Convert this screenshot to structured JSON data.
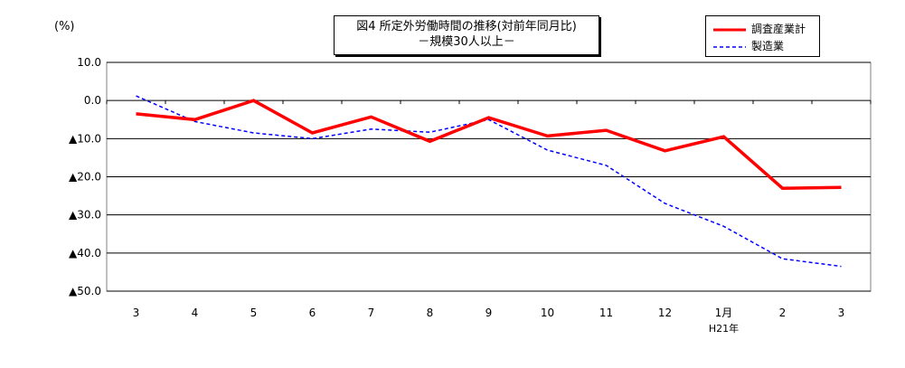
{
  "chart_data": {
    "type": "line",
    "title": "図4 所定外労働時間の推移(対前年同月比)",
    "subtitle": "－規模30人以上－",
    "ylabel": "(%)",
    "categories": [
      "3",
      "4",
      "5",
      "6",
      "7",
      "8",
      "9",
      "10",
      "11",
      "12",
      "1月",
      "2",
      "3"
    ],
    "x_sublabel": "H21年",
    "ylim": [
      -50,
      10
    ],
    "yticks": [
      10,
      0,
      -10,
      -20,
      -30,
      -40,
      -50
    ],
    "ytick_labels": [
      "10.0",
      "0.0",
      "▲10.0",
      "▲20.0",
      "▲30.0",
      "▲40.0",
      "▲50.0"
    ],
    "grid": true,
    "legend_position": "top-right",
    "series": [
      {
        "name": "調査産業計",
        "color": "#ff0000",
        "style": "solid",
        "values": [
          -3.5,
          -5.0,
          0.0,
          -8.5,
          -4.3,
          -10.7,
          -4.5,
          -9.3,
          -7.8,
          -13.2,
          -9.5,
          -23.0,
          -22.8
        ]
      },
      {
        "name": "製造業",
        "color": "#0000ff",
        "style": "dashed",
        "values": [
          1.2,
          -5.5,
          -8.5,
          -10.0,
          -7.5,
          -8.3,
          -5.0,
          -13.0,
          -17.0,
          -27.0,
          -33.0,
          -41.5,
          -43.5
        ]
      }
    ]
  }
}
